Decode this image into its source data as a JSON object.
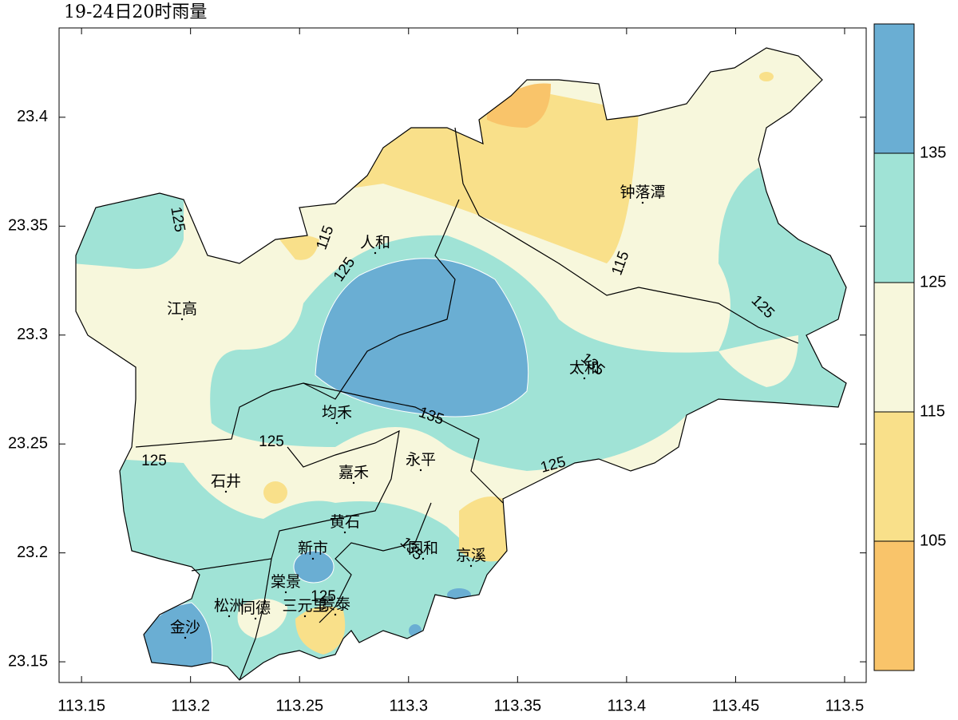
{
  "title": "19-24日20时雨量",
  "map": {
    "xlim": [
      113.1397,
      113.5099
    ],
    "ylim": [
      23.1405,
      23.441
    ],
    "xticks": [
      113.15,
      113.2,
      113.25,
      113.3,
      113.35,
      113.4,
      113.45,
      113.5
    ],
    "yticks": [
      23.15,
      23.2,
      23.25,
      23.3,
      23.35,
      23.4
    ],
    "places": [
      "人和",
      "江高",
      "钟落潭",
      "太和",
      "均禾",
      "石井",
      "嘉禾",
      "永平",
      "黄石",
      "新市",
      "同和",
      "京溪",
      "棠景",
      "松洲",
      "同德",
      "三元里",
      "景泰",
      "金沙"
    ],
    "contour_labels": [
      125,
      115,
      125,
      115,
      125,
      135,
      135,
      125,
      125,
      125,
      135,
      125
    ]
  },
  "colorbar": {
    "levels": [
      105,
      115,
      125,
      135
    ],
    "colors": [
      "#f9c46a",
      "#f9e08a",
      "#f7f7dc",
      "#a0e3d6",
      "#6aaed3"
    ]
  }
}
